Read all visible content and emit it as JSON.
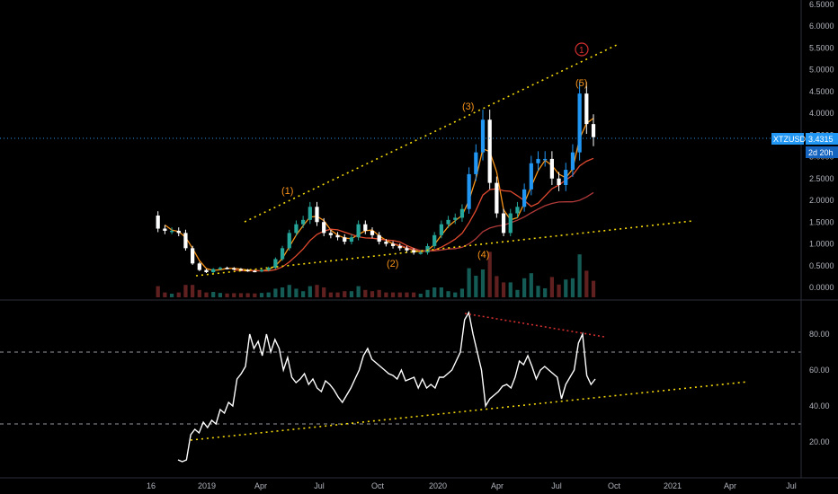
{
  "chart_data": [
    {
      "type": "candlestick",
      "symbol": "XTZUSD",
      "price_ylim": [
        0,
        6.5
      ],
      "price_ticks": [
        "6.5000",
        "6.0000",
        "5.5000",
        "5.0000",
        "4.5000",
        "4.0000",
        "3.5000",
        "3.0000",
        "2.5000",
        "2.0000",
        "1.5000",
        "1.0000",
        "0.5000",
        "0.0000"
      ],
      "x_tick_labels": [
        "16",
        "2019",
        "Apr",
        "Jul",
        "Oct",
        "2020",
        "Apr",
        "Jul",
        "Oct",
        "2021",
        "Apr",
        "Jul"
      ],
      "last_price": {
        "label": "XTZUSD",
        "value": "3.4315",
        "countdown": "2d 20h"
      },
      "wave_labels": [
        "(1)",
        "(2)",
        "(3)",
        "(4)",
        "(5)"
      ],
      "circle_label": "1",
      "price_series": [
        1.65,
        1.35,
        1.3,
        1.3,
        1.25,
        0.9,
        0.55,
        0.4,
        0.35,
        0.42,
        0.45,
        0.44,
        0.42,
        0.4,
        0.38,
        0.37,
        0.4,
        0.45,
        0.65,
        0.9,
        1.25,
        1.45,
        1.55,
        1.85,
        1.5,
        1.25,
        1.2,
        1.15,
        1.05,
        1.15,
        1.45,
        1.3,
        1.2,
        1.05,
        1.0,
        0.95,
        0.9,
        0.85,
        0.8,
        0.8,
        0.95,
        1.2,
        1.45,
        1.55,
        1.6,
        1.8,
        2.6,
        3.1,
        3.85,
        2.4,
        1.7,
        1.25,
        1.7,
        1.85,
        2.25,
        2.85,
        2.95,
        2.95,
        2.5,
        2.35,
        2.7,
        3.1,
        4.45,
        3.75,
        3.45
      ],
      "colors": {
        "up": "#26a69a",
        "up_bright": "#2196f3",
        "down": "#ffffff",
        "ma_fast": "#f7931a",
        "ma_mid": "#e04a2f",
        "ma_slow": "#b03a3a",
        "trend": "#f5d90a",
        "divergence": "#d32f2f",
        "tag_bg": "#2196f3"
      }
    },
    {
      "type": "line",
      "ylim": [
        0,
        100
      ],
      "y_ticks": [
        "80.00",
        "60.00",
        "40.00",
        "20.00"
      ],
      "levels": [
        70,
        30
      ],
      "rsi_series": [
        10,
        9,
        10,
        24,
        27,
        25,
        31,
        28,
        32,
        30,
        38,
        36,
        42,
        40,
        55,
        58,
        62,
        80,
        72,
        76,
        68,
        80,
        70,
        77,
        72,
        60,
        67,
        56,
        53,
        55,
        58,
        52,
        55,
        50,
        48,
        54,
        52,
        49,
        45,
        42,
        46,
        50,
        55,
        60,
        68,
        72,
        66,
        64,
        62,
        60,
        58,
        57,
        55,
        60,
        54,
        55,
        56,
        50,
        55,
        50,
        52,
        50,
        56,
        56,
        58,
        60,
        65,
        70,
        88,
        92,
        80,
        70,
        60,
        40,
        44,
        46,
        48,
        51,
        52,
        50,
        56,
        65,
        63,
        68,
        62,
        55,
        60,
        62,
        60,
        58,
        56,
        44,
        52,
        56,
        60,
        75,
        80,
        57,
        52,
        55
      ]
    }
  ]
}
